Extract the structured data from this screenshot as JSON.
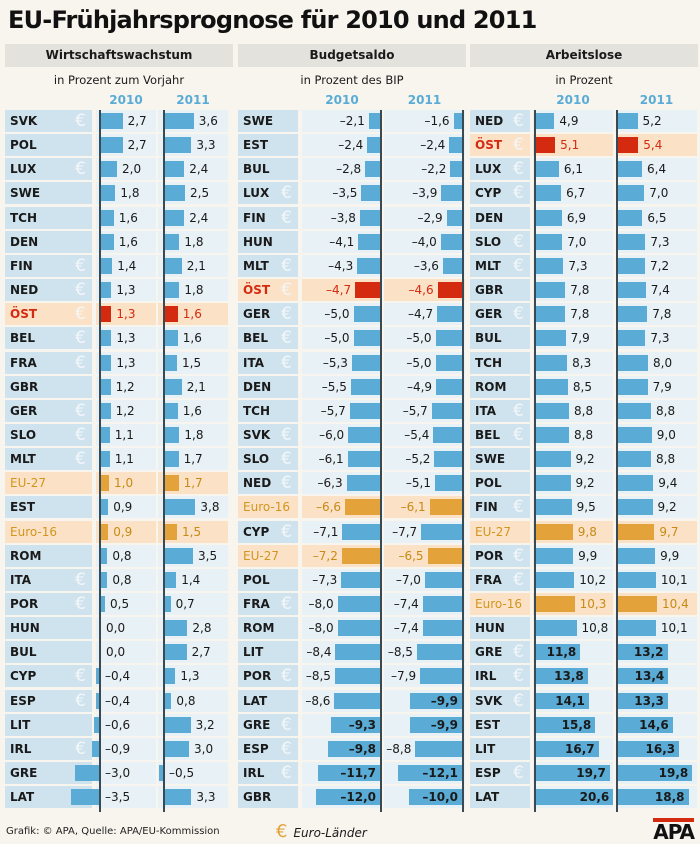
{
  "title": "EU-Frühjahrsprognose für 2010 und 2011",
  "footer": "Grafik: © APA, Quelle: APA/EU-Kommission",
  "legend": {
    "icon": "euro-icon",
    "label": "Euro-Länder"
  },
  "logo": "APA",
  "colors": {
    "bar": "#5aacd6",
    "austria": "#d42a10",
    "aggregate": "#e3a33a",
    "label_bg": "#cfe3ef"
  },
  "chart_data": [
    {
      "type": "bar",
      "title": "Wirtschaftswachstum",
      "subtitle": "in Prozent zum Vorjahr",
      "years": [
        "2010",
        "2011"
      ],
      "rows": [
        [
          "SVK",
          true,
          2.7,
          3.6
        ],
        [
          "POL",
          false,
          2.7,
          3.3
        ],
        [
          "LUX",
          true,
          2.0,
          2.4
        ],
        [
          "SWE",
          false,
          1.8,
          2.5
        ],
        [
          "TCH",
          false,
          1.6,
          2.4
        ],
        [
          "DEN",
          false,
          1.6,
          1.8
        ],
        [
          "FIN",
          true,
          1.4,
          2.1
        ],
        [
          "NED",
          true,
          1.3,
          1.8
        ],
        [
          "ÖST",
          true,
          1.3,
          1.6,
          "at"
        ],
        [
          "BEL",
          true,
          1.3,
          1.6
        ],
        [
          "FRA",
          true,
          1.3,
          1.5
        ],
        [
          "GBR",
          false,
          1.2,
          2.1
        ],
        [
          "GER",
          true,
          1.2,
          1.6
        ],
        [
          "SLO",
          true,
          1.1,
          1.8
        ],
        [
          "MLT",
          true,
          1.1,
          1.7
        ],
        [
          "EU-27",
          false,
          1.0,
          1.7,
          "eu"
        ],
        [
          "EST",
          false,
          0.9,
          3.8
        ],
        [
          "Euro-16",
          false,
          0.9,
          1.5,
          "eu"
        ],
        [
          "ROM",
          false,
          0.8,
          3.5
        ],
        [
          "ITA",
          true,
          0.8,
          1.4
        ],
        [
          "POR",
          true,
          0.5,
          0.7
        ],
        [
          "HUN",
          false,
          0.0,
          2.8
        ],
        [
          "BUL",
          false,
          0.0,
          2.7
        ],
        [
          "CYP",
          true,
          -0.4,
          1.3
        ],
        [
          "ESP",
          true,
          -0.4,
          0.8
        ],
        [
          "LIT",
          false,
          -0.6,
          3.2
        ],
        [
          "IRL",
          true,
          -0.9,
          3.0
        ],
        [
          "GRE",
          true,
          -3.0,
          -0.5
        ],
        [
          "LAT",
          false,
          -3.5,
          3.3
        ]
      ]
    },
    {
      "type": "bar",
      "title": "Budgetsaldo",
      "subtitle": "in Prozent des BIP",
      "years": [
        "2010",
        "2011"
      ],
      "rows": [
        [
          "SWE",
          false,
          -2.1,
          -1.6
        ],
        [
          "EST",
          false,
          -2.4,
          -2.4
        ],
        [
          "BUL",
          false,
          -2.8,
          -2.2
        ],
        [
          "LUX",
          true,
          -3.5,
          -3.9
        ],
        [
          "FIN",
          true,
          -3.8,
          -2.9
        ],
        [
          "HUN",
          false,
          -4.1,
          -4.0
        ],
        [
          "MLT",
          true,
          -4.3,
          -3.6
        ],
        [
          "ÖST",
          true,
          -4.7,
          -4.6,
          "at"
        ],
        [
          "GER",
          true,
          -5.0,
          -4.7
        ],
        [
          "BEL",
          true,
          -5.0,
          -5.0
        ],
        [
          "ITA",
          true,
          -5.3,
          -5.0
        ],
        [
          "DEN",
          false,
          -5.5,
          -4.9
        ],
        [
          "TCH",
          false,
          -5.7,
          -5.7
        ],
        [
          "SVK",
          true,
          -6.0,
          -5.4
        ],
        [
          "SLO",
          true,
          -6.1,
          -5.2
        ],
        [
          "NED",
          true,
          -6.3,
          -5.1
        ],
        [
          "Euro-16",
          false,
          -6.6,
          -6.1,
          "eu"
        ],
        [
          "CYP",
          true,
          -7.1,
          -7.7
        ],
        [
          "EU-27",
          false,
          -7.2,
          -6.5,
          "eu"
        ],
        [
          "POL",
          false,
          -7.3,
          -7.0
        ],
        [
          "FRA",
          true,
          -8.0,
          -7.4
        ],
        [
          "ROM",
          false,
          -8.0,
          -7.4
        ],
        [
          "LIT",
          false,
          -8.4,
          -8.5
        ],
        [
          "POR",
          true,
          -8.5,
          -7.9
        ],
        [
          "LAT",
          false,
          -8.6,
          -9.9
        ],
        [
          "GRE",
          true,
          -9.3,
          -9.9
        ],
        [
          "ESP",
          true,
          -9.8,
          -8.8
        ],
        [
          "IRL",
          true,
          -11.7,
          -12.1
        ],
        [
          "GBR",
          false,
          -12.0,
          -10.0
        ]
      ]
    },
    {
      "type": "bar",
      "title": "Arbeitslose",
      "subtitle": "in Prozent",
      "years": [
        "2010",
        "2011"
      ],
      "rows": [
        [
          "NED",
          true,
          4.9,
          5.2
        ],
        [
          "ÖST",
          true,
          5.1,
          5.4,
          "at"
        ],
        [
          "LUX",
          true,
          6.1,
          6.4
        ],
        [
          "CYP",
          true,
          6.7,
          7.0
        ],
        [
          "DEN",
          false,
          6.9,
          6.5
        ],
        [
          "SLO",
          true,
          7.0,
          7.3
        ],
        [
          "MLT",
          true,
          7.3,
          7.2
        ],
        [
          "GBR",
          false,
          7.8,
          7.4
        ],
        [
          "GER",
          true,
          7.8,
          7.8
        ],
        [
          "BUL",
          false,
          7.9,
          7.3
        ],
        [
          "TCH",
          false,
          8.3,
          8.0
        ],
        [
          "ROM",
          false,
          8.5,
          7.9
        ],
        [
          "ITA",
          true,
          8.8,
          8.8
        ],
        [
          "BEL",
          true,
          8.8,
          9.0
        ],
        [
          "SWE",
          false,
          9.2,
          8.8
        ],
        [
          "POL",
          false,
          9.2,
          9.4
        ],
        [
          "FIN",
          true,
          9.5,
          9.2
        ],
        [
          "EU-27",
          false,
          9.8,
          9.7,
          "eu"
        ],
        [
          "POR",
          true,
          9.9,
          9.9
        ],
        [
          "FRA",
          true,
          10.2,
          10.1
        ],
        [
          "Euro-16",
          false,
          10.3,
          10.4,
          "eu"
        ],
        [
          "HUN",
          false,
          10.8,
          10.1
        ],
        [
          "GRE",
          true,
          11.8,
          13.2
        ],
        [
          "IRL",
          true,
          13.8,
          13.4
        ],
        [
          "SVK",
          true,
          14.1,
          13.3
        ],
        [
          "EST",
          false,
          15.8,
          14.6
        ],
        [
          "LIT",
          false,
          16.7,
          16.3
        ],
        [
          "ESP",
          true,
          19.7,
          19.8
        ],
        [
          "LAT",
          false,
          20.6,
          18.8
        ]
      ]
    }
  ]
}
